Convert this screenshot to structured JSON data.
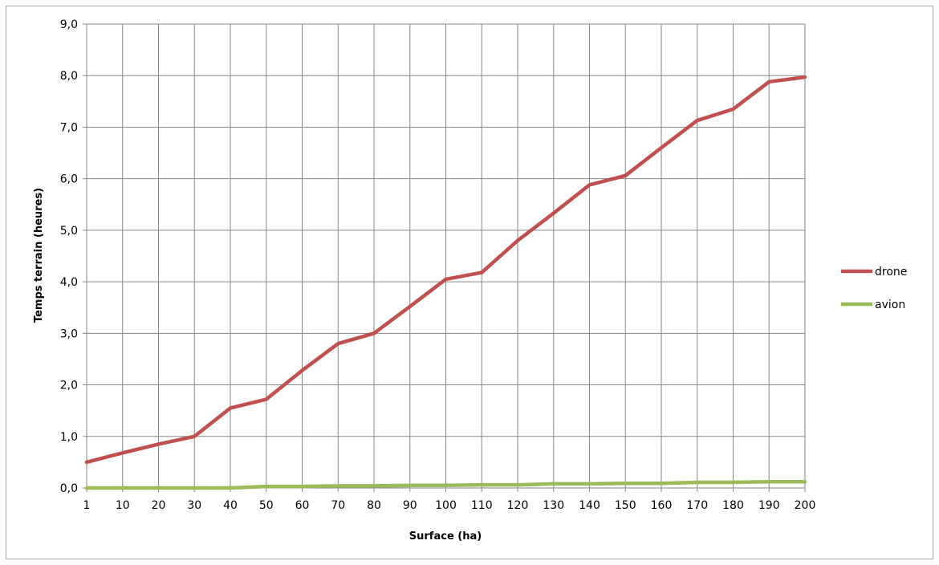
{
  "chart_data": {
    "type": "line",
    "title": "",
    "xlabel": "Surface (ha)",
    "ylabel": "Temps terrain (heures)",
    "categories": [
      "1",
      "10",
      "20",
      "30",
      "40",
      "50",
      "60",
      "70",
      "80",
      "90",
      "100",
      "110",
      "120",
      "130",
      "140",
      "150",
      "160",
      "170",
      "180",
      "190",
      "200"
    ],
    "ylim": [
      0,
      9
    ],
    "ytick_labels": [
      "0,0",
      "1,0",
      "2,0",
      "3,0",
      "4,0",
      "5,0",
      "6,0",
      "7,0",
      "8,0",
      "9,0"
    ],
    "grid": true,
    "legend_position": "right",
    "series": [
      {
        "name": "drone",
        "color": "#c0504d",
        "values": [
          0.5,
          0.68,
          0.85,
          1.0,
          1.55,
          1.72,
          2.28,
          2.8,
          3.0,
          3.52,
          4.05,
          4.18,
          4.8,
          5.33,
          5.88,
          6.06,
          6.6,
          7.13,
          7.35,
          7.88,
          7.97
        ]
      },
      {
        "name": "avion",
        "color": "#9bbb59",
        "values": [
          0.0,
          0.0,
          0.0,
          0.0,
          0.0,
          0.03,
          0.03,
          0.04,
          0.04,
          0.05,
          0.05,
          0.06,
          0.06,
          0.08,
          0.08,
          0.09,
          0.09,
          0.11,
          0.11,
          0.12,
          0.12
        ]
      }
    ]
  }
}
